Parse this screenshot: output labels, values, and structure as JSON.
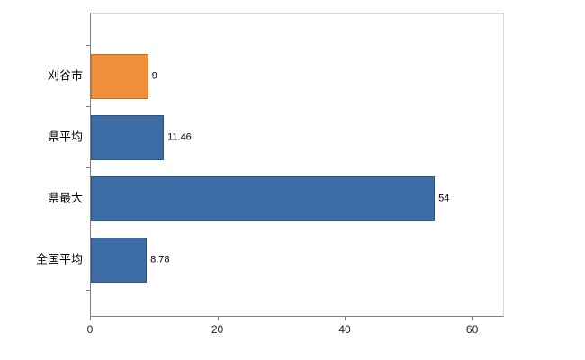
{
  "chart_data": {
    "type": "bar",
    "orientation": "horizontal",
    "title": "",
    "xlabel": "",
    "ylabel": "",
    "categories": [
      "刈谷市",
      "県平均",
      "県最大",
      "全国平均"
    ],
    "values": [
      9,
      11.46,
      54,
      8.78
    ],
    "value_labels": [
      "9",
      "11.46",
      "54",
      "8.78"
    ],
    "x_tick_labels": [
      "0",
      "20",
      "40",
      "60"
    ],
    "x_tick_values": [
      0,
      20,
      40,
      60
    ],
    "xlim": [
      0,
      65
    ],
    "grid": false,
    "legend": "none",
    "bar_fill_colors": [
      "#EF8E3B",
      "#3E6DA6",
      "#3E6DA6",
      "#3E6DA6"
    ],
    "bar_border_colors": [
      "#C9711F",
      "#2C5480",
      "#2C5480",
      "#2C5480"
    ]
  },
  "style": {
    "background": "#FFFFFF",
    "axis_color": "#808080",
    "plot_border_color": "#D9D9D9",
    "label_color": "#000000",
    "tick_label_color": "#222222"
  }
}
